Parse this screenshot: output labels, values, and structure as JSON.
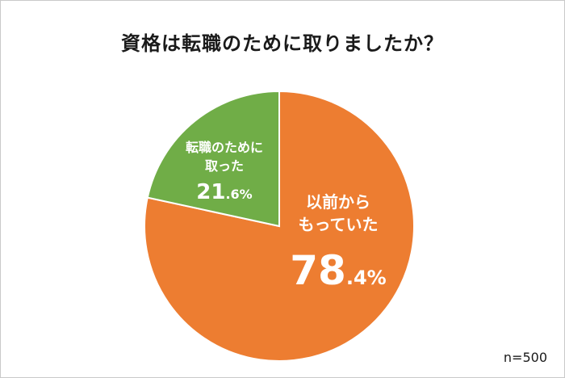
{
  "chart_data": {
    "type": "pie",
    "title": "資格は転職のために取りましたか？",
    "slices": [
      {
        "label_line1": "以前から",
        "label_line2": "もっていた",
        "pct_int": "78",
        "pct_dec": ".4%",
        "value": 78.4,
        "color": "#ed7d31"
      },
      {
        "label_line1": "転職のために",
        "label_line2": "取った",
        "pct_int": "21",
        "pct_dec": ".6%",
        "value": 21.6,
        "color": "#70ad47"
      }
    ],
    "note": "n=500"
  }
}
